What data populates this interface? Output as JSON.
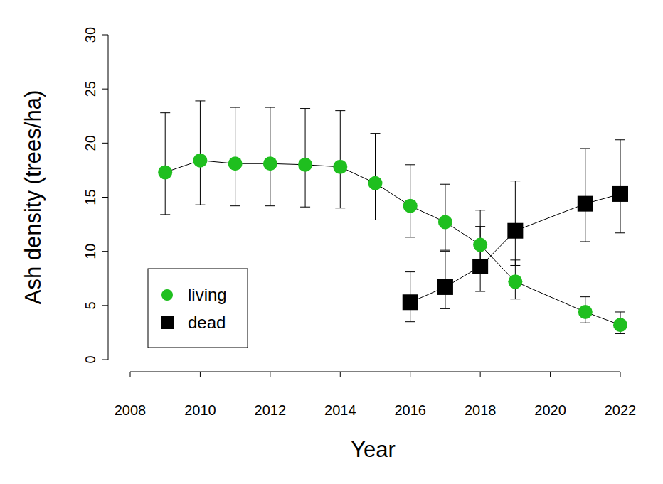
{
  "chart_data": {
    "type": "line",
    "x_label": "Year",
    "y_label": "Ash density (trees/ha)",
    "xlim": [
      2008,
      2022
    ],
    "xticks": [
      2008,
      2010,
      2012,
      2014,
      2016,
      2018,
      2020,
      2022
    ],
    "ylim": [
      0,
      30
    ],
    "yticks": [
      0,
      5,
      10,
      15,
      20,
      25,
      30
    ],
    "legend": "bottom-left",
    "series": [
      {
        "name": "living",
        "color": "#1fbf1f",
        "marker": "circle",
        "x": [
          2009,
          2010,
          2011,
          2012,
          2013,
          2014,
          2015,
          2016,
          2017,
          2018,
          2019,
          2021,
          2022
        ],
        "values": [
          17.3,
          18.4,
          18.1,
          18.1,
          18.0,
          17.8,
          16.3,
          14.2,
          12.7,
          10.6,
          7.2,
          4.4,
          3.2
        ],
        "lower": [
          13.4,
          14.3,
          14.2,
          14.2,
          14.1,
          14.0,
          12.9,
          11.3,
          10.1,
          8.8,
          5.6,
          3.4,
          2.4
        ],
        "upper": [
          22.8,
          23.9,
          23.3,
          23.3,
          23.2,
          23.0,
          20.9,
          18.0,
          16.2,
          12.3,
          9.2,
          5.8,
          4.4
        ]
      },
      {
        "name": "dead",
        "color": "#000000",
        "marker": "square",
        "x": [
          2016,
          2017,
          2018,
          2019,
          2021,
          2022
        ],
        "values": [
          5.3,
          6.7,
          8.6,
          11.9,
          14.4,
          15.3
        ],
        "lower": [
          3.5,
          4.7,
          6.3,
          8.7,
          10.9,
          11.7
        ],
        "upper": [
          8.1,
          10.0,
          13.8,
          16.5,
          19.5,
          20.3
        ]
      }
    ]
  }
}
